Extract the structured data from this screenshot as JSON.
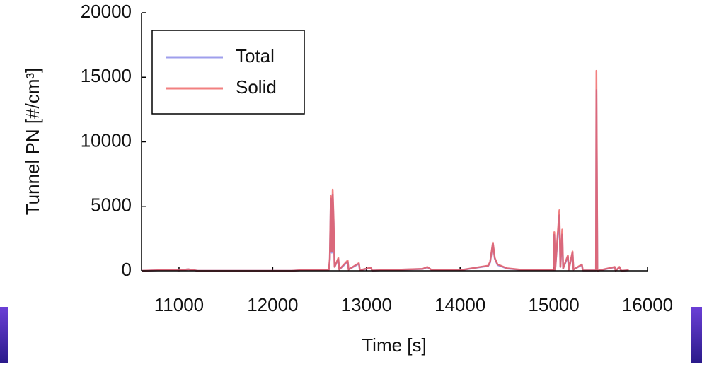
{
  "chart_data": {
    "type": "line",
    "x_label": "Time [s]",
    "y_label": "Tunnel PN [#/cm³]",
    "x": [
      10600,
      10800,
      10900,
      11000,
      11100,
      11200,
      12200,
      12300,
      12600,
      12610,
      12620,
      12630,
      12640,
      12650,
      12660,
      12700,
      12710,
      12800,
      12810,
      12920,
      12930,
      13050,
      13060,
      13600,
      13650,
      13700,
      14000,
      14300,
      14320,
      14350,
      14370,
      14400,
      14500,
      14700,
      15000,
      15005,
      15015,
      15060,
      15070,
      15090,
      15100,
      15150,
      15160,
      15200,
      15210,
      15300,
      15310,
      15450,
      15455,
      15465,
      15650,
      15660,
      15700,
      15720,
      15800
    ],
    "series": [
      {
        "name": "Total",
        "color": "#7f7fe6",
        "values": [
          0,
          50,
          100,
          30,
          120,
          0,
          0,
          50,
          100,
          900,
          5600,
          1400,
          5900,
          3800,
          300,
          900,
          100,
          700,
          100,
          550,
          50,
          230,
          20,
          140,
          280,
          50,
          50,
          380,
          650,
          2100,
          950,
          450,
          180,
          40,
          40,
          2800,
          100,
          4300,
          300,
          2800,
          180,
          1100,
          100,
          1400,
          100,
          450,
          30,
          30,
          14000,
          0,
          280,
          0,
          280,
          0,
          40
        ]
      },
      {
        "name": "Solid",
        "color": "#ee5555",
        "values": [
          0,
          50,
          100,
          30,
          120,
          0,
          0,
          50,
          100,
          1000,
          5800,
          1500,
          6300,
          4000,
          300,
          1000,
          100,
          800,
          100,
          600,
          50,
          250,
          20,
          150,
          300,
          50,
          50,
          400,
          700,
          2200,
          1000,
          500,
          200,
          50,
          50,
          3000,
          100,
          4700,
          300,
          3200,
          200,
          1200,
          100,
          1500,
          100,
          500,
          30,
          30,
          15500,
          0,
          300,
          0,
          300,
          0,
          50
        ]
      }
    ],
    "xlim": [
      10600,
      16000
    ],
    "xticks": [
      11000,
      12000,
      13000,
      14000,
      15000,
      16000
    ],
    "ylim": [
      0,
      20000
    ],
    "yticks": [
      0,
      5000,
      10000,
      15000,
      20000
    ],
    "grid": false,
    "legend": "upper left"
  }
}
